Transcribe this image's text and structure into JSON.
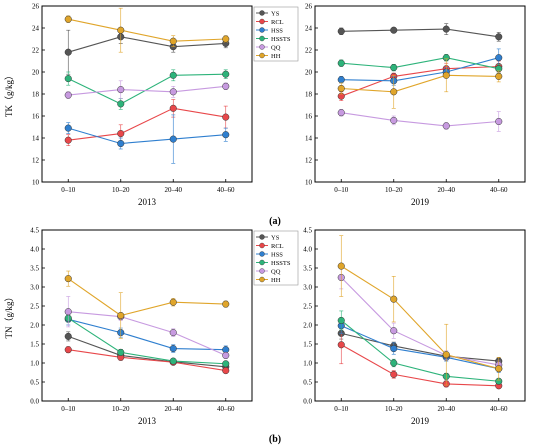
{
  "figure": {
    "label_a": "(a)",
    "label_b": "(b)"
  },
  "chart_data": [
    {
      "type": "line",
      "panel": "a-left",
      "title": "2013",
      "ylabel": "TK（g/kg）",
      "categories": [
        "0–10",
        "10–20",
        "20–40",
        "40–60"
      ],
      "ylim": [
        10,
        26
      ],
      "yticks": [
        10,
        12,
        14,
        16,
        18,
        20,
        22,
        24,
        26
      ],
      "series": [
        {
          "name": "YS",
          "color": "#555555",
          "values": [
            21.8,
            23.2,
            22.3,
            22.6
          ],
          "errors": [
            2.0,
            0.6,
            0.5,
            0.4
          ]
        },
        {
          "name": "RCL",
          "color": "#e8474a",
          "values": [
            13.8,
            14.4,
            16.7,
            15.9
          ],
          "errors": [
            0.5,
            0.8,
            0.8,
            1.0
          ]
        },
        {
          "name": "HSS",
          "color": "#2f7fcf",
          "values": [
            14.9,
            13.5,
            13.9,
            14.3
          ],
          "errors": [
            0.5,
            0.5,
            2.2,
            0.6
          ]
        },
        {
          "name": "HSSTS",
          "color": "#2db37a",
          "values": [
            19.4,
            17.1,
            19.7,
            19.8
          ],
          "errors": [
            0.6,
            0.5,
            0.5,
            0.4
          ]
        },
        {
          "name": "QQ",
          "color": "#c79ae0",
          "values": [
            17.9,
            18.4,
            18.2,
            18.7
          ],
          "errors": [
            0.3,
            0.8,
            0.5,
            0.3
          ]
        },
        {
          "name": "HH",
          "color": "#e0a52a",
          "values": [
            24.8,
            23.8,
            22.8,
            23.0
          ],
          "errors": [
            0.3,
            2.0,
            0.5,
            0.3
          ]
        }
      ]
    },
    {
      "type": "line",
      "panel": "a-right",
      "title": "2019",
      "ylabel": "",
      "categories": [
        "0–10",
        "10–20",
        "20–40",
        "40–60"
      ],
      "ylim": [
        10,
        26
      ],
      "yticks": [
        10,
        12,
        14,
        16,
        18,
        20,
        22,
        24,
        26
      ],
      "series": [
        {
          "name": "YS",
          "color": "#555555",
          "values": [
            23.7,
            23.8,
            23.9,
            23.2
          ],
          "errors": [
            0.3,
            0.2,
            0.5,
            0.4
          ]
        },
        {
          "name": "RCL",
          "color": "#e8474a",
          "values": [
            17.8,
            19.6,
            20.3,
            20.5
          ],
          "errors": [
            0.4,
            0.3,
            0.5,
            0.5
          ]
        },
        {
          "name": "HSS",
          "color": "#2f7fcf",
          "values": [
            19.3,
            19.2,
            20.0,
            21.3
          ],
          "errors": [
            0.3,
            0.4,
            0.4,
            0.8
          ]
        },
        {
          "name": "HSSTS",
          "color": "#2db37a",
          "values": [
            20.8,
            20.4,
            21.3,
            20.3
          ],
          "errors": [
            0.3,
            0.3,
            0.3,
            0.4
          ]
        },
        {
          "name": "QQ",
          "color": "#c79ae0",
          "values": [
            16.3,
            15.6,
            15.1,
            15.5
          ],
          "errors": [
            0.3,
            0.4,
            0.3,
            0.9
          ]
        },
        {
          "name": "HH",
          "color": "#e0a52a",
          "values": [
            18.5,
            18.2,
            19.7,
            19.6
          ],
          "errors": [
            0.5,
            1.5,
            1.5,
            0.5
          ]
        }
      ]
    },
    {
      "type": "line",
      "panel": "b-left",
      "title": "2013",
      "ylabel": "TN（g/kg）",
      "categories": [
        "0–10",
        "10–20",
        "20–40",
        "40–60"
      ],
      "ylim": [
        0,
        4.5
      ],
      "yticks": [
        "0.0",
        "0.5",
        "1.0",
        "1.5",
        "2.0",
        "2.5",
        "3.0",
        "3.5",
        "4.0",
        "4.5"
      ],
      "series": [
        {
          "name": "YS",
          "color": "#555555",
          "values": [
            1.7,
            1.2,
            1.03,
            0.9
          ],
          "errors": [
            0.12,
            0.1,
            0.06,
            0.05
          ]
        },
        {
          "name": "RCL",
          "color": "#e8474a",
          "values": [
            1.35,
            1.15,
            1.02,
            0.8
          ],
          "errors": [
            0.08,
            0.08,
            0.06,
            0.05
          ]
        },
        {
          "name": "HSS",
          "color": "#2f7fcf",
          "values": [
            2.15,
            1.8,
            1.38,
            1.35
          ],
          "errors": [
            0.15,
            0.12,
            0.1,
            0.1
          ]
        },
        {
          "name": "HSSTS",
          "color": "#2db37a",
          "values": [
            2.18,
            1.28,
            1.05,
            0.98
          ],
          "errors": [
            0.1,
            0.08,
            0.06,
            0.05
          ]
        },
        {
          "name": "QQ",
          "color": "#c79ae0",
          "values": [
            2.35,
            2.22,
            1.8,
            1.2
          ],
          "errors": [
            0.4,
            0.1,
            0.1,
            0.08
          ]
        },
        {
          "name": "HH",
          "color": "#e0a52a",
          "values": [
            3.22,
            2.25,
            2.6,
            2.55
          ],
          "errors": [
            0.2,
            0.6,
            0.1,
            0.08
          ]
        }
      ]
    },
    {
      "type": "line",
      "panel": "b-right",
      "title": "2019",
      "ylabel": "",
      "categories": [
        "0–10",
        "10–20",
        "20–40",
        "40–60"
      ],
      "ylim": [
        0,
        4.5
      ],
      "yticks": [
        "0.0",
        "0.5",
        "1.0",
        "1.5",
        "2.0",
        "2.5",
        "3.0",
        "3.5",
        "4.0",
        "4.5"
      ],
      "series": [
        {
          "name": "YS",
          "color": "#555555",
          "values": [
            1.78,
            1.45,
            1.18,
            1.05
          ],
          "errors": [
            0.15,
            0.1,
            0.08,
            0.08
          ]
        },
        {
          "name": "RCL",
          "color": "#e8474a",
          "values": [
            1.48,
            0.7,
            0.45,
            0.4
          ],
          "errors": [
            0.5,
            0.1,
            0.08,
            0.06
          ]
        },
        {
          "name": "HSS",
          "color": "#2f7fcf",
          "values": [
            1.98,
            1.38,
            1.15,
            0.85
          ],
          "errors": [
            0.2,
            0.15,
            0.1,
            0.1
          ]
        },
        {
          "name": "HSSTS",
          "color": "#2db37a",
          "values": [
            2.12,
            1.0,
            0.65,
            0.52
          ],
          "errors": [
            0.25,
            0.1,
            0.08,
            0.06
          ]
        },
        {
          "name": "QQ",
          "color": "#c79ae0",
          "values": [
            3.25,
            1.85,
            1.2,
            0.95
          ],
          "errors": [
            0.3,
            0.2,
            0.12,
            0.1
          ]
        },
        {
          "name": "HH",
          "color": "#e0a52a",
          "values": [
            3.55,
            2.68,
            1.22,
            0.85
          ],
          "errors": [
            0.8,
            0.6,
            0.8,
            0.3
          ]
        }
      ]
    }
  ]
}
